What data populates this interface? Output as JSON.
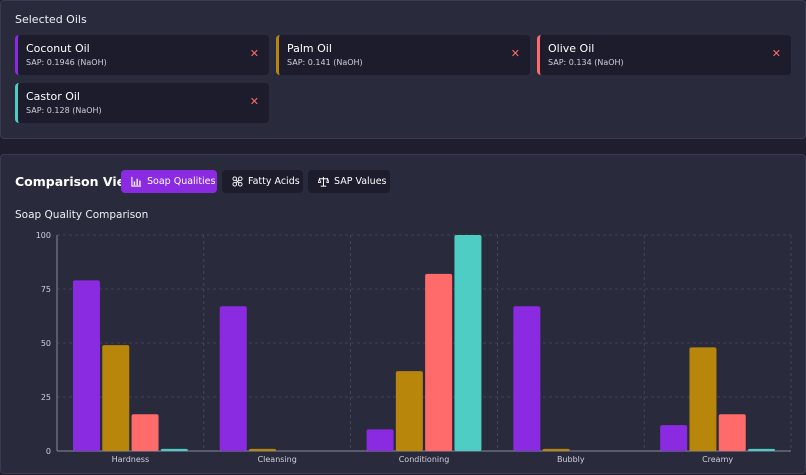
{
  "selected_oils": {
    "title": "Selected Oils",
    "oils": [
      {
        "name": "Coconut Oil",
        "sap": "SAP: 0.1946 (NaOH)",
        "color": "#8a2be2"
      },
      {
        "name": "Palm Oil",
        "sap": "SAP: 0.141 (NaOH)",
        "color": "#b8860b"
      },
      {
        "name": "Olive Oil",
        "sap": "SAP: 0.134 (NaOH)",
        "color": "#ff6b6b"
      },
      {
        "name": "Castor Oil",
        "sap": "SAP: 0.128 (NaOH)",
        "color": "#4ecdc4"
      }
    ],
    "remove_glyph": "✕"
  },
  "comparison": {
    "title": "Comparison View",
    "tabs": [
      {
        "label": "Soap Qualities",
        "icon": "bar-chart-icon",
        "active": true
      },
      {
        "label": "Fatty Acids",
        "icon": "molecule-icon",
        "active": false
      },
      {
        "label": "SAP Values",
        "icon": "scale-icon",
        "active": false
      }
    ],
    "chart_title": "Soap Quality Comparison"
  },
  "chart_data": {
    "type": "bar",
    "categories": [
      "Hardness",
      "Cleansing",
      "Conditioning",
      "Bubbly",
      "Creamy"
    ],
    "series": [
      {
        "name": "Coconut Oil",
        "color": "#8a2be2",
        "values": [
          79,
          67,
          10,
          67,
          12
        ]
      },
      {
        "name": "Palm Oil",
        "color": "#b8860b",
        "values": [
          49,
          1,
          37,
          1,
          48
        ]
      },
      {
        "name": "Olive Oil",
        "color": "#ff6b6b",
        "values": [
          17,
          0,
          82,
          0,
          17
        ]
      },
      {
        "name": "Castor Oil",
        "color": "#4ecdc4",
        "values": [
          1,
          0,
          100,
          0,
          1
        ]
      }
    ],
    "yticks": [
      "0",
      "25",
      "50",
      "75",
      "100"
    ],
    "ylim": [
      0,
      100
    ],
    "grid": true
  }
}
